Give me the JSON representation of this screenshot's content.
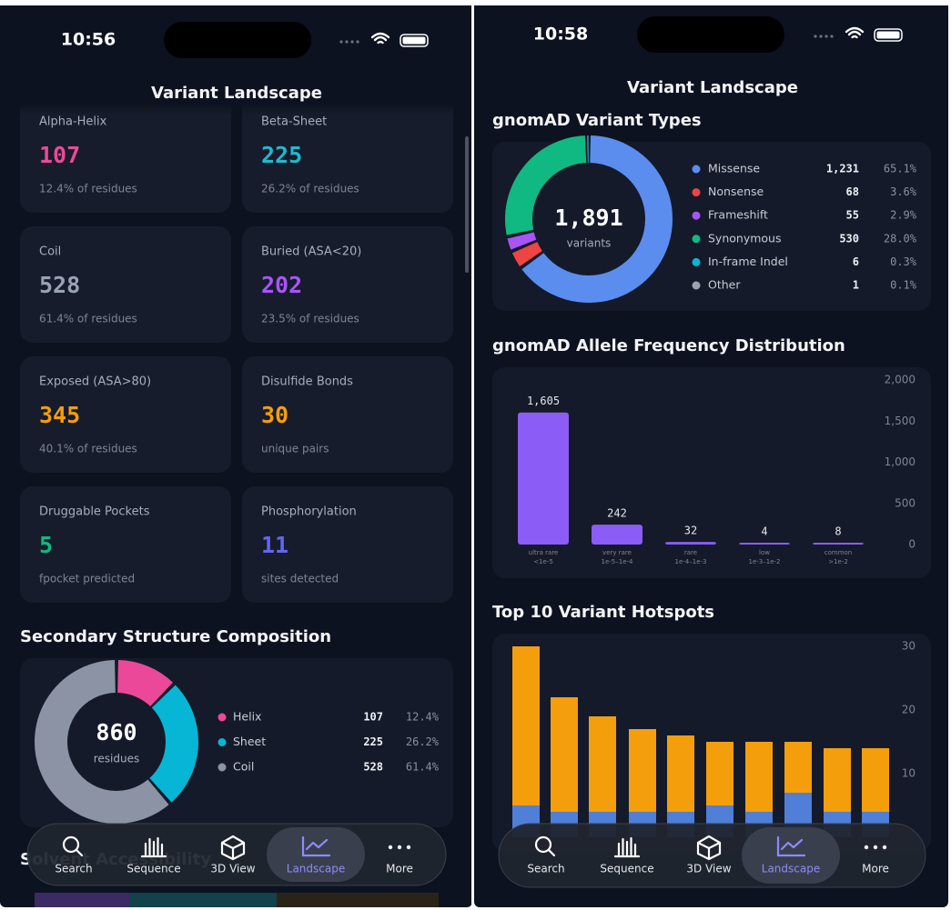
{
  "screens": [
    {
      "time": "10:56",
      "title": "Variant Landscape",
      "cards": [
        {
          "label": "Alpha-Helix",
          "value": 107,
          "note": "12.4% of residues",
          "color": "#ec4899"
        },
        {
          "label": "Beta-Sheet",
          "value": 225,
          "note": "26.2% of residues",
          "color": "#22b8cf"
        },
        {
          "label": "Coil",
          "value": 528,
          "note": "61.4% of residues",
          "color": "#9aa3b5"
        },
        {
          "label": "Buried (ASA<20)",
          "value": 202,
          "note": "23.5% of residues",
          "color": "#a855f7"
        },
        {
          "label": "Exposed (ASA>80)",
          "value": 345,
          "note": "40.1% of residues",
          "color": "#f59e0b"
        },
        {
          "label": "Disulfide Bonds",
          "value": 30,
          "note": "unique pairs",
          "color": "#f59e0b"
        },
        {
          "label": "Druggable Pockets",
          "value": 5,
          "note": "fpocket predicted",
          "color": "#10b981"
        },
        {
          "label": "Phosphorylation",
          "value": 11,
          "note": "sites detected",
          "color": "#6366f1"
        }
      ],
      "next_section": "Solvent Accessibility",
      "nav": [
        {
          "label": "Search"
        },
        {
          "label": "Sequence"
        },
        {
          "label": "3D View"
        },
        {
          "label": "Landscape",
          "active": true
        },
        {
          "label": "More"
        }
      ]
    },
    {
      "time": "10:58",
      "title": "Variant Landscape",
      "nav": [
        {
          "label": "Search"
        },
        {
          "label": "Sequence"
        },
        {
          "label": "3D View"
        },
        {
          "label": "Landscape",
          "active": true
        },
        {
          "label": "More"
        }
      ]
    }
  ],
  "chart_data": [
    {
      "type": "donut",
      "title": "Secondary Structure Composition",
      "center": 860,
      "center_label": "residues",
      "categories": [
        "Helix",
        "Sheet",
        "Coil"
      ],
      "values": [
        107,
        225,
        528
      ],
      "percents": [
        "12.4%",
        "26.2%",
        "61.4%"
      ],
      "colors": [
        "#ec4899",
        "#06b6d4",
        "#8b93a5"
      ]
    },
    {
      "type": "donut",
      "title": "gnomAD Variant Types",
      "center": "1,891",
      "center_label": "variants",
      "categories": [
        "Missense",
        "Nonsense",
        "Frameshift",
        "Synonymous",
        "In-frame Indel",
        "Other"
      ],
      "values": [
        1231,
        68,
        55,
        530,
        6,
        1
      ],
      "value_labels": [
        "1,231",
        "68",
        "55",
        "530",
        "6",
        "1"
      ],
      "percents": [
        "65.1%",
        "3.6%",
        "2.9%",
        "28.0%",
        "0.3%",
        "0.1%"
      ],
      "colors": [
        "#5b8def",
        "#ef4444",
        "#a855f7",
        "#10b981",
        "#06b6d4",
        "#9ca3af"
      ]
    },
    {
      "type": "bar",
      "title": "gnomAD Allele Frequency Distribution",
      "categories": [
        "ultra rare",
        "very rare",
        "rare",
        "low",
        "common"
      ],
      "ranges": [
        "<1e-5",
        "1e-5–1e-4",
        "1e-4–1e-3",
        "1e-3–1e-2",
        ">1e-2"
      ],
      "values": [
        1605,
        242,
        32,
        4,
        8
      ],
      "value_labels": [
        "1,605",
        "242",
        "32",
        "4",
        "8"
      ],
      "color": "#8b5cf6",
      "ylim": [
        0,
        2000
      ],
      "yticks": [
        0,
        500,
        {
          "value": 1000,
          "label": "1,000"
        },
        {
          "value": 1500,
          "label": "1,500"
        },
        {
          "value": 2000,
          "label": "2,000"
        }
      ]
    },
    {
      "type": "stacked_bar",
      "title": "Top 10 Variant Hotspots",
      "series": [
        {
          "color": "#4f7fd6",
          "values": [
            5,
            4,
            4,
            4,
            4,
            5,
            4,
            7,
            4,
            4
          ]
        },
        {
          "color": "#f59e0b",
          "values": [
            25,
            18,
            15,
            13,
            12,
            10,
            11,
            8,
            10,
            10
          ]
        }
      ],
      "ylim": [
        0,
        30
      ],
      "yticks": [
        10,
        20,
        30
      ]
    }
  ]
}
